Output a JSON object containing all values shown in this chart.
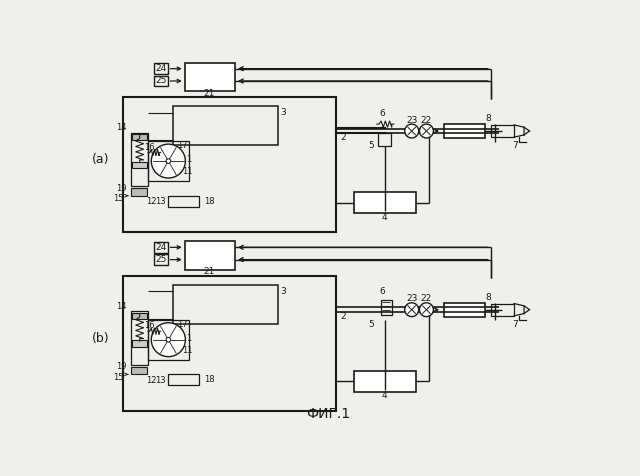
{
  "bg_color": "#efefeb",
  "line_color": "#1a1a1a",
  "title": "ФИГ.1",
  "lw": 1.0,
  "lw_thick": 1.5
}
